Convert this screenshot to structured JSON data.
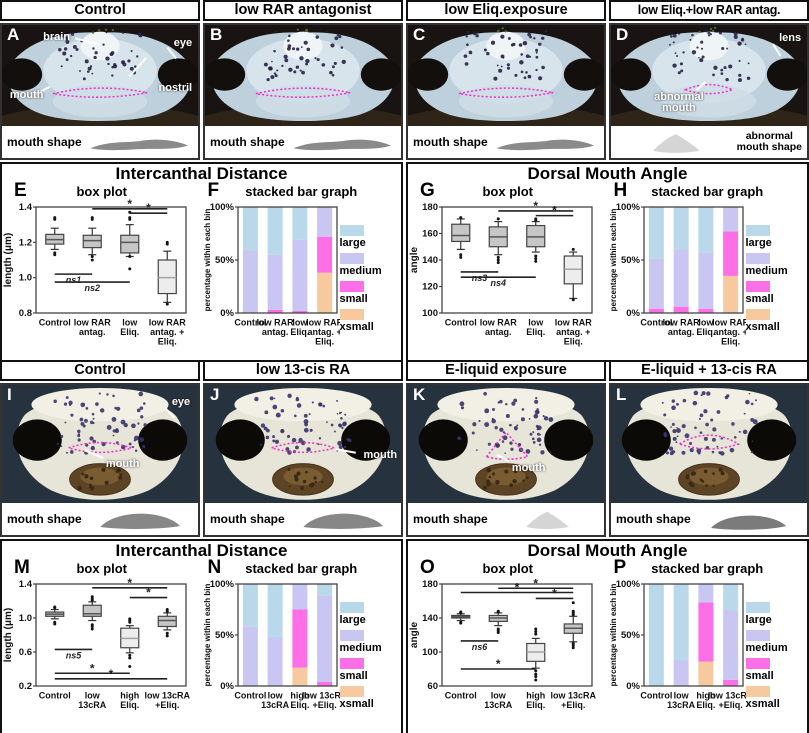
{
  "palette": {
    "large": "#b9d8ea",
    "medium": "#c9c6f2",
    "small": "#fc6fe6",
    "xsmall": "#f6c99f",
    "box_fill": "#c6c6c6",
    "box_fill_light": "#ededed",
    "mouth_outline": "#ee2fc8"
  },
  "legend": {
    "items": [
      {
        "key": "large",
        "label": "large"
      },
      {
        "key": "medium",
        "label": "medium"
      },
      {
        "key": "small",
        "label": "small"
      },
      {
        "key": "xsmall",
        "label": "xsmall"
      }
    ]
  },
  "group_titles": {
    "row1_left": "Intercanthal Distance",
    "row1_right": "Dorsal Mouth Angle",
    "row2_left": "Intercanthal Distance",
    "row2_right": "Dorsal Mouth Angle"
  },
  "photo_panels": {
    "A": {
      "letter": "A",
      "title": "Control",
      "face": "froglet",
      "shape": "wide-flat",
      "strip_label": "mouth shape",
      "annotations": {
        "brain": "brain",
        "eye": "eye",
        "mouth": "mouth",
        "nostril": "nostril"
      }
    },
    "B": {
      "letter": "B",
      "title": "low RAR antagonist",
      "face": "froglet",
      "shape": "wide-flat",
      "strip_label": "mouth shape",
      "annotations": {}
    },
    "C": {
      "letter": "C",
      "title": "low Eliq.exposure",
      "face": "froglet",
      "shape": "wide-flat",
      "strip_label": "mouth shape",
      "annotations": {}
    },
    "D": {
      "letter": "D",
      "title": "low Eliq.+low RAR antag.",
      "face": "froglet-abnormal",
      "shape": "triangle-light",
      "strip_label": "abnormal\nmouth shape",
      "annotations": {
        "lens": "lens",
        "abnormal_mouth": "abnormal\nmouth"
      }
    },
    "I": {
      "letter": "I",
      "title": "Control",
      "face": "tadpole",
      "shape": "dome",
      "strip_label": "mouth shape",
      "annotations": {
        "eye": "eye",
        "mouth": "mouth"
      }
    },
    "J": {
      "letter": "J",
      "title": "low 13-cis RA",
      "face": "tadpole",
      "shape": "dome",
      "strip_label": "mouth shape",
      "annotations": {
        "mouth": "mouth"
      }
    },
    "K": {
      "letter": "K",
      "title": "E-liquid exposure",
      "face": "tadpole-triangle",
      "shape": "triangle-light",
      "strip_label": "mouth shape",
      "annotations": {
        "mouth": "mouth"
      }
    },
    "L": {
      "letter": "L",
      "title": "E-liquid + 13-cis RA",
      "face": "tadpole-dome",
      "shape": "dome-dark",
      "strip_label": "mouth shape",
      "annotations": {}
    }
  },
  "chart_data": {
    "E": {
      "panel": "E",
      "type": "box",
      "title": "box plot",
      "ylabel": "length (μm)",
      "ylim": [
        0.8,
        1.4
      ],
      "yticks": [
        0.8,
        1.0,
        1.2,
        1.4
      ],
      "ytick_labels": [
        "0.8",
        "1.0",
        "1.2",
        "1.4"
      ],
      "categories": [
        "Control",
        "low RAR\nantag.",
        "low\nEliq.",
        "low RAR\nantag. +\nEliq."
      ],
      "boxes": [
        {
          "q1": 1.19,
          "med": 1.215,
          "q3": 1.245,
          "lo": 1.16,
          "hi": 1.28,
          "out": [
            1.34,
            1.33,
            1.14,
            1.13
          ],
          "light": false
        },
        {
          "q1": 1.17,
          "med": 1.21,
          "q3": 1.24,
          "lo": 1.13,
          "hi": 1.28,
          "out": [
            1.34,
            1.33,
            1.12,
            1.1
          ],
          "light": false
        },
        {
          "q1": 1.14,
          "med": 1.2,
          "q3": 1.24,
          "lo": 1.12,
          "hi": 1.3,
          "out": [
            1.37,
            1.34,
            1.33,
            1.12,
            1.05
          ],
          "light": false
        },
        {
          "q1": 0.91,
          "med": 1.0,
          "q3": 1.1,
          "lo": 0.86,
          "hi": 1.15,
          "out": [
            1.2,
            1.19,
            0.85
          ],
          "light": true
        }
      ],
      "sig": [
        {
          "a": 2,
          "b": 4,
          "y": 1.39,
          "label": "*"
        },
        {
          "a": 3,
          "b": 4,
          "y": 1.365,
          "label": "*"
        },
        {
          "a": 1,
          "b": 2,
          "y": 1.02,
          "label": "ns1"
        },
        {
          "a": 1,
          "b": 3,
          "y": 0.975,
          "label": "ns2"
        }
      ]
    },
    "F": {
      "panel": "F",
      "type": "stacked_bar",
      "title": "stacked bar graph",
      "ylabel": "percentage within each bin",
      "ylim": [
        0,
        100
      ],
      "yticks": [
        0,
        50,
        100
      ],
      "ytick_labels": [
        "0%",
        "50%",
        "100%"
      ],
      "series_order": [
        "xsmall",
        "small",
        "medium",
        "large"
      ],
      "categories": [
        "Control",
        "low RAR\nantag.",
        "low\nEliq.",
        "low RAR\nantag. +\nEliq."
      ],
      "values": [
        [
          0,
          0,
          59,
          41
        ],
        [
          0,
          3,
          52,
          45
        ],
        [
          0,
          2,
          67,
          31
        ],
        [
          38,
          34,
          28,
          0
        ]
      ]
    },
    "G": {
      "panel": "G",
      "type": "box",
      "title": "box plot",
      "ylabel": "angle",
      "ylim": [
        100,
        180
      ],
      "yticks": [
        100,
        120,
        140,
        160,
        180
      ],
      "ytick_labels": [
        "100",
        "120",
        "140",
        "160",
        "180"
      ],
      "categories": [
        "Control",
        "low RAR\nantag.",
        "low\nEliq.",
        "low RAR\nantag. +\nEliq."
      ],
      "boxes": [
        {
          "q1": 154,
          "med": 158.5,
          "q3": 167,
          "lo": 148,
          "hi": 171,
          "out": [
            172,
            144,
            142
          ],
          "light": false
        },
        {
          "q1": 150,
          "med": 157.5,
          "q3": 165,
          "lo": 144,
          "hi": 169,
          "out": [
            171,
            142,
            140,
            138
          ],
          "light": false
        },
        {
          "q1": 150,
          "med": 157.5,
          "q3": 166,
          "lo": 146,
          "hi": 169,
          "out": [
            171,
            170,
            143,
            141,
            139
          ],
          "light": false
        },
        {
          "q1": 122,
          "med": 133,
          "q3": 143,
          "lo": 111,
          "hi": 146,
          "out": [
            148,
            110
          ],
          "light": true
        }
      ],
      "sig": [
        {
          "a": 2,
          "b": 4,
          "y": 177,
          "label": "*"
        },
        {
          "a": 3,
          "b": 4,
          "y": 173.5,
          "label": "*"
        },
        {
          "a": 1,
          "b": 2,
          "y": 131,
          "label": "ns3"
        },
        {
          "a": 1,
          "b": 3,
          "y": 127,
          "label": "ns4"
        }
      ]
    },
    "H": {
      "panel": "H",
      "type": "stacked_bar",
      "title": "stacked bar graph",
      "ylabel": "percentage within each bin",
      "ylim": [
        0,
        100
      ],
      "yticks": [
        0,
        50,
        100
      ],
      "ytick_labels": [
        "0%",
        "50%",
        "100%"
      ],
      "series_order": [
        "xsmall",
        "small",
        "medium",
        "large"
      ],
      "categories": [
        "Control",
        "low RAR\nantag.",
        "low\nEliq.",
        "low RAR\nantag. +\nEliq."
      ],
      "values": [
        [
          0,
          4,
          47,
          49
        ],
        [
          0,
          6,
          54,
          40
        ],
        [
          0,
          4,
          53,
          43
        ],
        [
          35,
          42,
          23,
          0
        ]
      ]
    },
    "M": {
      "panel": "M",
      "type": "box",
      "title": "box plot",
      "ylabel": "length (μm)",
      "ylim": [
        0.2,
        1.4
      ],
      "yticks": [
        0.2,
        0.6,
        1.0,
        1.4
      ],
      "ytick_labels": [
        "0.2",
        "0.6",
        "1.0",
        "1.4"
      ],
      "categories": [
        "Control",
        "low\n13cRA",
        "high\nEliq.",
        "low 13cRA\n+Eliq."
      ],
      "boxes": [
        {
          "q1": 1.02,
          "med": 1.045,
          "q3": 1.07,
          "lo": 0.99,
          "hi": 1.1,
          "out": [
            1.13,
            1.12,
            0.95,
            0.93
          ],
          "light": false
        },
        {
          "q1": 1.02,
          "med": 1.05,
          "q3": 1.15,
          "lo": 0.97,
          "hi": 1.19,
          "out": [
            1.25,
            1.23,
            1.21,
            0.92,
            0.9,
            0.87
          ],
          "light": false
        },
        {
          "q1": 0.65,
          "med": 0.76,
          "q3": 0.88,
          "lo": 0.59,
          "hi": 0.91,
          "out": [
            0.99,
            0.97,
            0.95,
            0.56,
            0.53,
            0.43
          ],
          "light": true
        },
        {
          "q1": 0.9,
          "med": 0.97,
          "q3": 1.02,
          "lo": 0.86,
          "hi": 1.06,
          "out": [
            1.1,
            1.08,
            0.82,
            0.79
          ],
          "light": false
        }
      ],
      "sig": [
        {
          "a": 2,
          "b": 4,
          "y": 1.355,
          "label": "*"
        },
        {
          "a": 3,
          "b": 4,
          "y": 1.24,
          "label": "*"
        },
        {
          "a": 1,
          "b": 2,
          "y": 0.63,
          "label": "ns5"
        },
        {
          "a": 1,
          "b": 3,
          "y": 0.35,
          "label": "*"
        },
        {
          "a": 1,
          "b": 4,
          "y": 0.285,
          "label": "*"
        }
      ]
    },
    "N": {
      "panel": "N",
      "type": "stacked_bar",
      "title": "stacked bar graph",
      "ylabel": "percentage within each bin",
      "ylim": [
        0,
        100
      ],
      "yticks": [
        0,
        50,
        100
      ],
      "ytick_labels": [
        "0%",
        "50%",
        "100%"
      ],
      "series_order": [
        "xsmall",
        "small",
        "medium",
        "large"
      ],
      "categories": [
        "Control",
        "low\n13cRA",
        "high\nEliq.",
        "low 13cRA\n+Eliq."
      ],
      "values": [
        [
          0,
          0,
          58,
          42
        ],
        [
          0,
          0,
          48,
          52
        ],
        [
          18,
          57,
          25,
          0
        ],
        [
          0,
          4,
          85,
          11
        ]
      ]
    },
    "O": {
      "panel": "O",
      "type": "box",
      "title": "box plot",
      "ylabel": "angle",
      "ylim": [
        60,
        180
      ],
      "yticks": [
        60,
        100,
        140,
        180
      ],
      "ytick_labels": [
        "60",
        "100",
        "140",
        "180"
      ],
      "categories": [
        "Control",
        "low\n13cRA",
        "high\nEliq.",
        "low 13cRA\n+Eliq."
      ],
      "boxes": [
        {
          "q1": 140,
          "med": 141.5,
          "q3": 143,
          "lo": 137,
          "hi": 145,
          "out": [
            147,
            146,
            135,
            134
          ],
          "light": false
        },
        {
          "q1": 136,
          "med": 140,
          "q3": 143,
          "lo": 131,
          "hi": 146,
          "out": [
            148,
            147,
            127,
            125,
            123
          ],
          "light": false
        },
        {
          "q1": 89,
          "med": 100,
          "q3": 110,
          "lo": 81,
          "hi": 116,
          "out": [
            127,
            124,
            121,
            78,
            74,
            71,
            67
          ],
          "light": true
        },
        {
          "q1": 122,
          "med": 128,
          "q3": 133,
          "lo": 112,
          "hi": 142,
          "out": [
            158,
            148,
            146,
            144,
            110,
            108,
            105
          ],
          "light": false
        }
      ],
      "sig": [
        {
          "a": 2,
          "b": 4,
          "y": 175,
          "label": "*"
        },
        {
          "a": 1,
          "b": 4,
          "y": 170,
          "label": "*"
        },
        {
          "a": 3,
          "b": 4,
          "y": 163,
          "label": "*"
        },
        {
          "a": 1,
          "b": 2,
          "y": 113,
          "label": "ns6"
        },
        {
          "a": 1,
          "b": 3,
          "y": 80,
          "label": "*"
        }
      ]
    },
    "P": {
      "panel": "P",
      "type": "stacked_bar",
      "title": "stacked bar graph",
      "ylabel": "percentage within each bin",
      "ylim": [
        0,
        100
      ],
      "yticks": [
        0,
        50,
        100
      ],
      "ytick_labels": [
        "0%",
        "50%",
        "100%"
      ],
      "series_order": [
        "xsmall",
        "small",
        "medium",
        "large"
      ],
      "categories": [
        "Control",
        "low\n13cRA",
        "high\nEliq.",
        "low 13cRA\n+Eliq."
      ],
      "values": [
        [
          0,
          0,
          0,
          100
        ],
        [
          0,
          0,
          25,
          75
        ],
        [
          24,
          58,
          18,
          0
        ],
        [
          0,
          6,
          68,
          26
        ]
      ]
    }
  }
}
